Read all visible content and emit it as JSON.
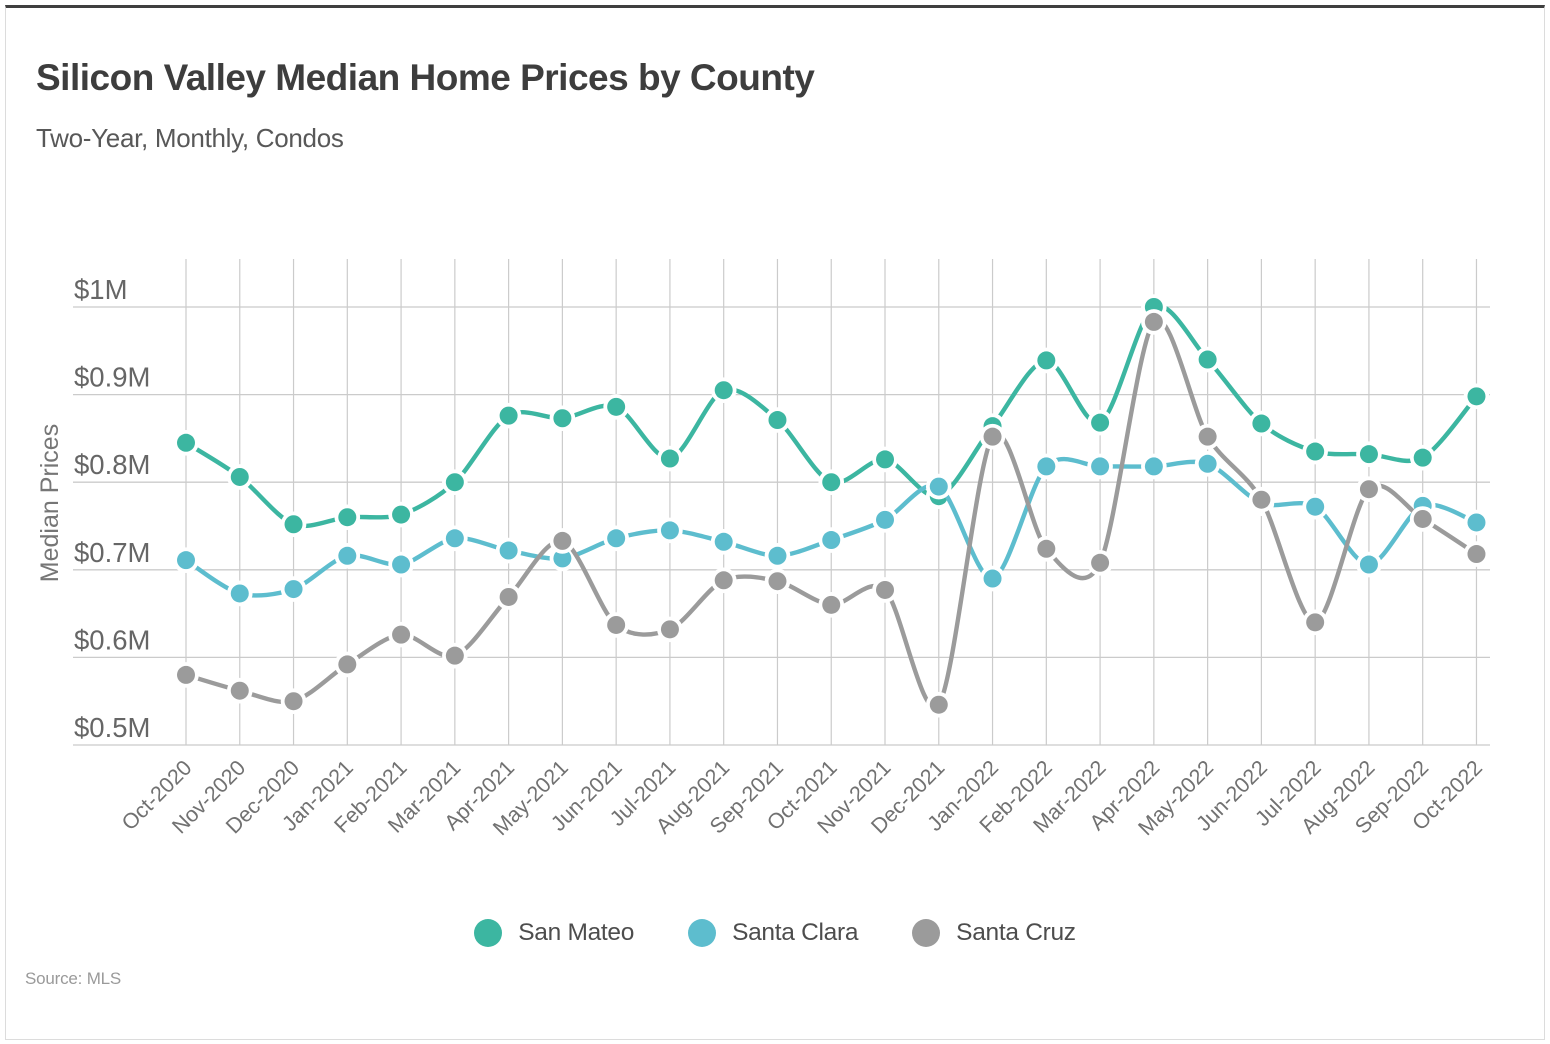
{
  "chart_data": {
    "type": "line",
    "title": "Silicon Valley Median Home Prices by County",
    "subtitle": "Two-Year, Monthly, Condos",
    "ylabel": "Median Prices",
    "xlabel": "",
    "source": "Source: MLS",
    "unit": "millions of dollars",
    "ylim": [
      0.5,
      1.0
    ],
    "grid": true,
    "legend_position": "bottom",
    "line_style": "smooth",
    "marker": "circle-with-white-ring",
    "yticks": [
      {
        "label": "$1M",
        "value": 1.0
      },
      {
        "label": "$0.9M",
        "value": 0.9
      },
      {
        "label": "$0.8M",
        "value": 0.8
      },
      {
        "label": "$0.7M",
        "value": 0.7
      },
      {
        "label": "$0.6M",
        "value": 0.6
      },
      {
        "label": "$0.5M",
        "value": 0.5
      }
    ],
    "categories": [
      "Oct-2020",
      "Nov-2020",
      "Dec-2020",
      "Jan-2021",
      "Feb-2021",
      "Mar-2021",
      "Apr-2021",
      "May-2021",
      "Jun-2021",
      "Jul-2021",
      "Aug-2021",
      "Sep-2021",
      "Oct-2021",
      "Nov-2021",
      "Dec-2021",
      "Jan-2022",
      "Feb-2022",
      "Mar-2022",
      "Apr-2022",
      "May-2022",
      "Jun-2022",
      "Jul-2022",
      "Aug-2022",
      "Sep-2022",
      "Oct-2022"
    ],
    "series": [
      {
        "name": "San Mateo",
        "color": "#3cb6a1",
        "values": [
          0.845,
          0.806,
          0.752,
          0.76,
          0.763,
          0.8,
          0.876,
          0.873,
          0.886,
          0.827,
          0.905,
          0.871,
          0.8,
          0.826,
          0.784,
          0.864,
          0.939,
          0.868,
          1.0,
          0.94,
          0.867,
          0.835,
          0.832,
          0.828,
          0.898
        ]
      },
      {
        "name": "Santa Clara",
        "color": "#5dbdce",
        "values": [
          0.711,
          0.673,
          0.678,
          0.716,
          0.706,
          0.736,
          0.722,
          0.713,
          0.736,
          0.745,
          0.732,
          0.716,
          0.734,
          0.757,
          0.795,
          0.69,
          0.818,
          0.818,
          0.818,
          0.821,
          0.776,
          0.772,
          0.706,
          0.773,
          0.754
        ]
      },
      {
        "name": "Santa Cruz",
        "color": "#9b9b9b",
        "values": [
          0.58,
          0.562,
          0.55,
          0.592,
          0.626,
          0.602,
          0.669,
          0.733,
          0.637,
          0.632,
          0.688,
          0.687,
          0.66,
          0.677,
          0.546,
          0.852,
          0.724,
          0.708,
          0.983,
          0.852,
          0.78,
          0.64,
          0.792,
          0.758,
          0.718
        ]
      }
    ]
  }
}
